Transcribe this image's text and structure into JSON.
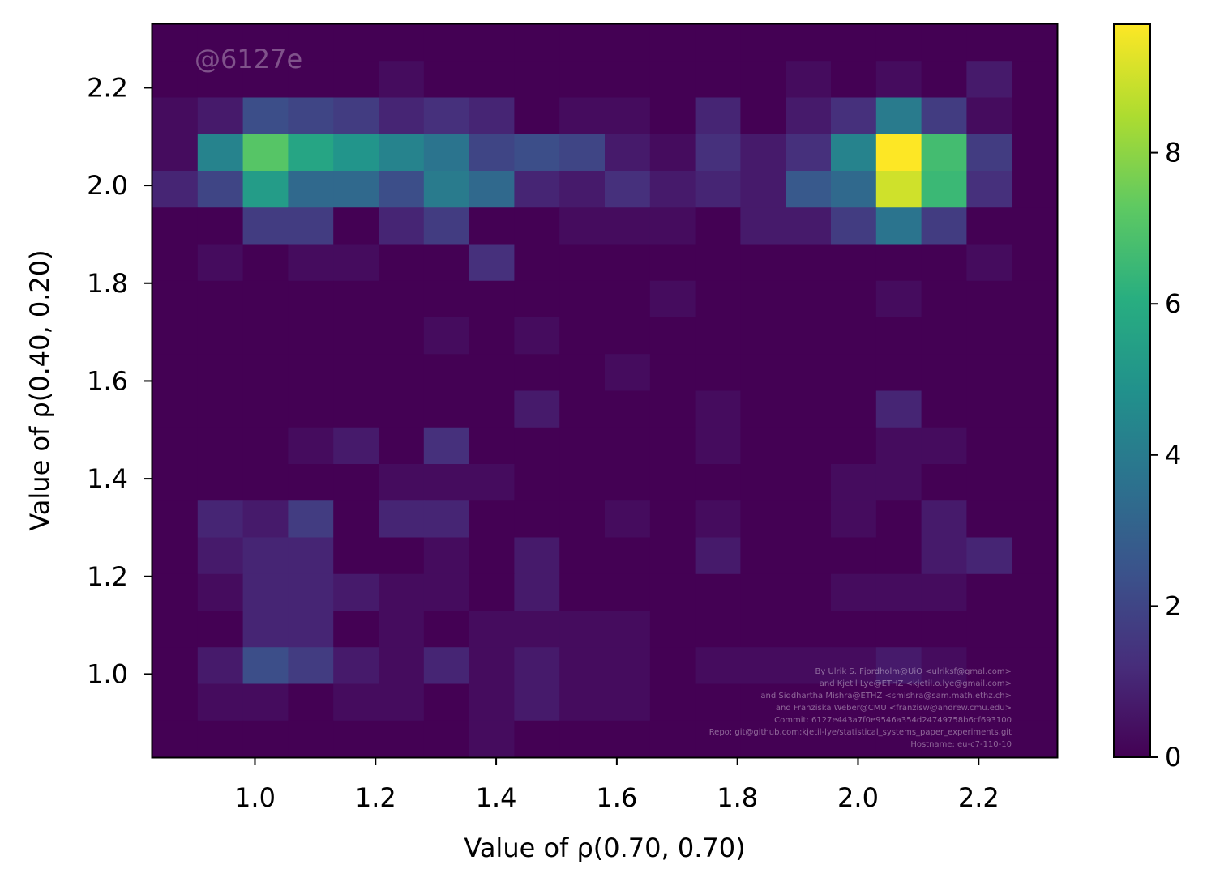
{
  "chart_data": {
    "type": "heatmap",
    "xlabel": "Value of ρ(0.70, 0.70)",
    "ylabel": "Value of ρ(0.40, 0.20)",
    "xlim": [
      0.83,
      2.33
    ],
    "ylim": [
      0.83,
      2.33
    ],
    "grid": false,
    "x_ticks": [
      1.0,
      1.2,
      1.4,
      1.6,
      1.8,
      2.0,
      2.2
    ],
    "x_tick_labels": [
      "1.0",
      "1.2",
      "1.4",
      "1.6",
      "1.8",
      "2.0",
      "2.2"
    ],
    "y_ticks": [
      1.0,
      1.2,
      1.4,
      1.6,
      1.8,
      2.0,
      2.2
    ],
    "y_tick_labels": [
      "1.0",
      "1.2",
      "1.4",
      "1.6",
      "1.8",
      "2.0",
      "2.2"
    ],
    "bins": {
      "x_edges": [
        0.83,
        0.905,
        0.98,
        1.055,
        1.13,
        1.205,
        1.28,
        1.355,
        1.43,
        1.505,
        1.58,
        1.655,
        1.73,
        1.805,
        1.88,
        1.955,
        2.03,
        2.105,
        2.18,
        2.255,
        2.33
      ],
      "y_edges": [
        0.83,
        0.905,
        0.98,
        1.055,
        1.13,
        1.205,
        1.28,
        1.355,
        1.43,
        1.505,
        1.58,
        1.655,
        1.73,
        1.805,
        1.88,
        1.955,
        2.03,
        2.105,
        2.18,
        2.255,
        2.33
      ]
    },
    "counts_top_to_bottom": [
      [
        0,
        0,
        0,
        0,
        0,
        0,
        0,
        0,
        0,
        0,
        0,
        0,
        0,
        0,
        0,
        0,
        0,
        0,
        0,
        0
      ],
      [
        0,
        0,
        0,
        0,
        0,
        0.3,
        0,
        0,
        0,
        0,
        0,
        0,
        0,
        0,
        0.3,
        0,
        0.3,
        0,
        0.7,
        0
      ],
      [
        0.3,
        0.7,
        2.3,
        2,
        1.7,
        1,
        1.3,
        1,
        0,
        0.3,
        0.3,
        0,
        1,
        0,
        0.7,
        1.3,
        4,
        1.7,
        0.3,
        0
      ],
      [
        0.3,
        4.3,
        7.1,
        5.7,
        5,
        4.3,
        3.7,
        2,
        2.3,
        2,
        0.7,
        0.3,
        1.3,
        0.7,
        1.3,
        4.3,
        9.7,
        6.7,
        1.7,
        0
      ],
      [
        1,
        2,
        5.3,
        3.3,
        3.3,
        2.3,
        4,
        3.3,
        1,
        0.7,
        1.3,
        0.7,
        1,
        0.7,
        2.7,
        3.3,
        9,
        6.5,
        1.3,
        0
      ],
      [
        0,
        0,
        1.7,
        1.7,
        0,
        1,
        1.7,
        0,
        0,
        0.3,
        0.3,
        0.3,
        0,
        0.7,
        0.7,
        1.7,
        3.7,
        1.7,
        0,
        0
      ],
      [
        0,
        0.3,
        0,
        0.3,
        0.3,
        0,
        0,
        1.3,
        0,
        0,
        0,
        0,
        0,
        0,
        0,
        0,
        0,
        0,
        0.3,
        0
      ],
      [
        0,
        0,
        0,
        0,
        0,
        0,
        0,
        0,
        0,
        0,
        0,
        0.3,
        0,
        0,
        0,
        0,
        0.3,
        0,
        0,
        0
      ],
      [
        0,
        0,
        0,
        0,
        0,
        0,
        0.3,
        0,
        0.3,
        0,
        0,
        0,
        0,
        0,
        0,
        0,
        0,
        0,
        0,
        0
      ],
      [
        0,
        0,
        0,
        0,
        0,
        0,
        0,
        0,
        0,
        0,
        0.3,
        0,
        0,
        0,
        0,
        0,
        0,
        0,
        0,
        0
      ],
      [
        0,
        0,
        0,
        0,
        0,
        0,
        0,
        0,
        0.7,
        0,
        0,
        0,
        0.3,
        0,
        0,
        0,
        1,
        0,
        0,
        0
      ],
      [
        0,
        0,
        0,
        0.3,
        0.7,
        0,
        1.3,
        0,
        0,
        0,
        0,
        0,
        0.3,
        0,
        0,
        0,
        0.3,
        0.3,
        0,
        0
      ],
      [
        0,
        0,
        0,
        0,
        0,
        0.3,
        0.3,
        0.3,
        0,
        0,
        0,
        0,
        0,
        0,
        0,
        0.3,
        0.3,
        0,
        0,
        0
      ],
      [
        0,
        1,
        0.7,
        1.7,
        0,
        1,
        1,
        0,
        0,
        0,
        0.3,
        0,
        0.3,
        0,
        0,
        0.3,
        0,
        0.7,
        0,
        0
      ],
      [
        0,
        0.7,
        1,
        1,
        0,
        0,
        0.3,
        0,
        0.7,
        0,
        0,
        0,
        0.7,
        0,
        0,
        0,
        0,
        0.7,
        1,
        0
      ],
      [
        0,
        0.3,
        1,
        1,
        0.7,
        0.3,
        0.3,
        0,
        0.7,
        0,
        0,
        0,
        0,
        0,
        0,
        0.3,
        0.3,
        0.3,
        0,
        0
      ],
      [
        0,
        0,
        1,
        1,
        0,
        0.3,
        0,
        0.3,
        0.3,
        0.3,
        0.3,
        0,
        0,
        0,
        0,
        0,
        0,
        0,
        0,
        0
      ],
      [
        0,
        0.7,
        2.3,
        1.7,
        0.7,
        0.3,
        1,
        0.3,
        0.7,
        0.3,
        0.3,
        0,
        0.3,
        0.3,
        0.3,
        0.3,
        0.7,
        0.3,
        0,
        0
      ],
      [
        0,
        0.3,
        0.3,
        0,
        0.3,
        0.3,
        0,
        0.3,
        0.7,
        0.3,
        0.3,
        0,
        0,
        0,
        0,
        0,
        0,
        0,
        0,
        0
      ],
      [
        0,
        0,
        0,
        0,
        0,
        0,
        0,
        0.3,
        0,
        0,
        0,
        0,
        0,
        0,
        0,
        0,
        0,
        0,
        0,
        0
      ]
    ],
    "colormap": "viridis",
    "colorbar": {
      "vmin": 0,
      "vmax": 9.7,
      "ticks": [
        0,
        2,
        4,
        6,
        8
      ],
      "tick_labels": [
        "0",
        "2",
        "4",
        "6",
        "8"
      ]
    },
    "watermark": "@6127e",
    "credits": [
      "By Ulrik S. Fjordholm@UiO <ulriksf@gmal.com>",
      "and Kjetil Lye@ETHZ <kjetil.o.lye@gmail.com>",
      "and Siddhartha Mishra@ETHZ <smishra@sam.math.ethz.ch>",
      "and Franziska Weber@CMU <franzisw@andrew.cmu.edu>",
      "Commit: 6127e443a7f0e9546a354d24749758b6cf693100",
      "Repo: git@github.com:kjetil-lye/statistical_systems_paper_experiments.git",
      "Hostname: eu-c7-110-10"
    ]
  }
}
